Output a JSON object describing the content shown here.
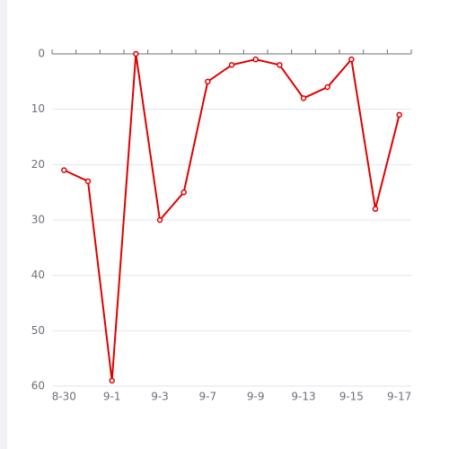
{
  "chart_data": {
    "type": "line",
    "categories": [
      "8-30",
      null,
      "9-1",
      null,
      "9-3",
      null,
      "9-7",
      null,
      "9-9",
      null,
      "9-13",
      null,
      "9-15",
      null,
      "9-17"
    ],
    "series": [
      {
        "color": "#e00000",
        "values": [
          21,
          23,
          59,
          0,
          30,
          25,
          5,
          2,
          1,
          2,
          8,
          6,
          1,
          28,
          11
        ]
      }
    ],
    "ylim": [
      0,
      60
    ],
    "yticks": [
      0,
      10,
      20,
      30,
      40,
      50,
      60
    ],
    "y_inverse": true,
    "grid": true
  }
}
